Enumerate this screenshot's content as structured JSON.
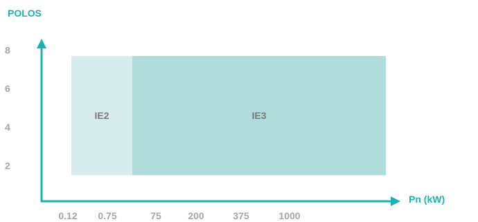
{
  "chart_data": {
    "type": "area",
    "title": "",
    "xlabel": "Pn (kW)",
    "ylabel": "POLOS",
    "x_ticks": [
      "0.12",
      "0.75",
      "75",
      "200",
      "375",
      "1000"
    ],
    "y_ticks": [
      "2",
      "4",
      "6",
      "8"
    ],
    "ylim": [
      0,
      8.6
    ],
    "grid": false,
    "legend": "none",
    "regions": [
      {
        "name": "IE2",
        "x_from": "0.12",
        "x_to": "0.75",
        "y_from": 1.5,
        "y_to": 7.7,
        "color": "#d6eced"
      },
      {
        "name": "IE3",
        "x_from": "0.75",
        "x_to": "1000",
        "y_from": 1.5,
        "y_to": 7.7,
        "color": "#b1dcdc"
      }
    ]
  },
  "colors": {
    "axis": "#1ab2b2",
    "axis_title": "#1ab2b2",
    "tick_label": "#a6a6a6",
    "region_label": "#7a7a7a"
  }
}
